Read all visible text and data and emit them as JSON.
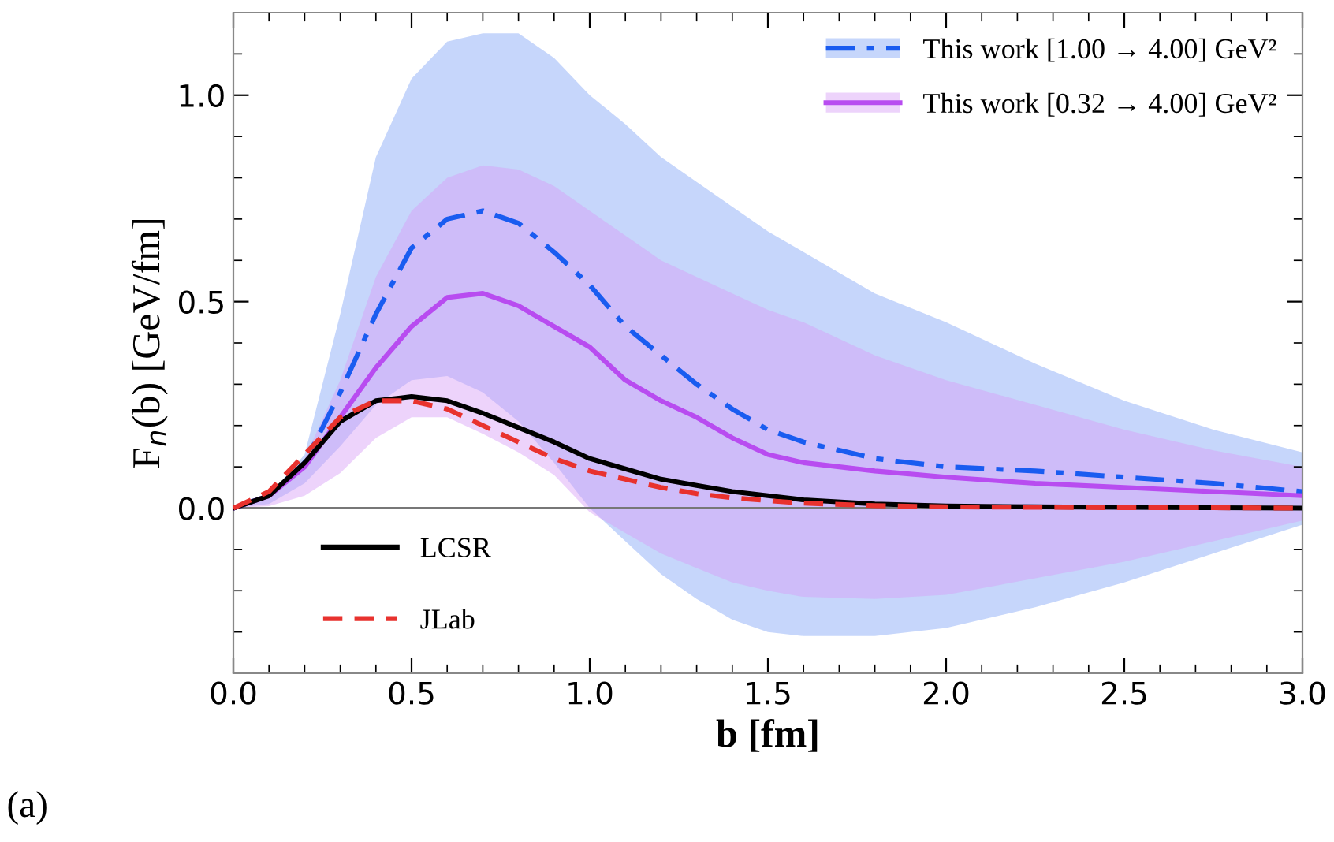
{
  "chart_data": {
    "type": "line",
    "xlabel": "b [fm]",
    "ylabel": "F$_{n}$(b) [GeV/fm]",
    "x": [
      0,
      0.1,
      0.2,
      0.3,
      0.4,
      0.5,
      0.6,
      0.7,
      0.8,
      0.9,
      1.0,
      1.1,
      1.2,
      1.3,
      1.4,
      1.5,
      1.6,
      1.8,
      2.0,
      2.25,
      2.5,
      2.75,
      3.0
    ],
    "series": [
      {
        "name": "This work [1.00 → 4.00] GeV²",
        "color": "#1a5cf0",
        "line_style": "dashdot",
        "values": [
          0,
          0.03,
          0.11,
          0.28,
          0.47,
          0.63,
          0.7,
          0.72,
          0.69,
          0.62,
          0.54,
          0.44,
          0.37,
          0.3,
          0.24,
          0.19,
          0.16,
          0.12,
          0.1,
          0.09,
          0.075,
          0.06,
          0.04
        ],
        "upper": [
          0,
          0.03,
          0.13,
          0.47,
          0.85,
          1.04,
          1.13,
          1.15,
          1.15,
          1.09,
          1.0,
          0.93,
          0.85,
          0.79,
          0.73,
          0.67,
          0.62,
          0.52,
          0.45,
          0.35,
          0.26,
          0.19,
          0.135
        ],
        "lower": [
          0,
          0.01,
          0.06,
          0.15,
          0.25,
          0.31,
          0.32,
          0.28,
          0.21,
          0.11,
          0.0,
          -0.08,
          -0.16,
          -0.22,
          -0.27,
          -0.3,
          -0.31,
          -0.31,
          -0.29,
          -0.24,
          -0.18,
          -0.11,
          -0.04
        ]
      },
      {
        "name": "This work [0.32 → 4.00] GeV²",
        "color": "#b84cf0",
        "line_style": "solid",
        "values": [
          0,
          0.03,
          0.1,
          0.22,
          0.34,
          0.44,
          0.51,
          0.52,
          0.49,
          0.44,
          0.39,
          0.31,
          0.26,
          0.22,
          0.17,
          0.13,
          0.11,
          0.09,
          0.075,
          0.06,
          0.05,
          0.04,
          0.03
        ],
        "upper": [
          0,
          0.03,
          0.12,
          0.31,
          0.56,
          0.72,
          0.8,
          0.83,
          0.82,
          0.78,
          0.72,
          0.66,
          0.6,
          0.56,
          0.52,
          0.48,
          0.45,
          0.37,
          0.31,
          0.25,
          0.19,
          0.14,
          0.1
        ],
        "lower": [
          0,
          0.005,
          0.03,
          0.085,
          0.17,
          0.22,
          0.22,
          0.18,
          0.135,
          0.08,
          -0.01,
          -0.06,
          -0.11,
          -0.145,
          -0.18,
          -0.2,
          -0.215,
          -0.22,
          -0.21,
          -0.17,
          -0.13,
          -0.08,
          -0.03
        ]
      },
      {
        "name": "LCSR",
        "color": "#000000",
        "line_style": "solid",
        "values": [
          0,
          0.03,
          0.11,
          0.21,
          0.26,
          0.27,
          0.26,
          0.23,
          0.195,
          0.16,
          0.12,
          0.095,
          0.07,
          0.055,
          0.04,
          0.03,
          0.02,
          0.01,
          0.005,
          0.003,
          0.002,
          0.001,
          0
        ]
      },
      {
        "name": "JLab",
        "color": "#e8322e",
        "line_style": "dashed",
        "values": [
          0,
          0.04,
          0.13,
          0.22,
          0.26,
          0.26,
          0.24,
          0.2,
          0.16,
          0.12,
          0.09,
          0.07,
          0.05,
          0.035,
          0.025,
          0.018,
          0.012,
          0.006,
          0.003,
          0.002,
          0.001,
          0.001,
          0
        ]
      }
    ],
    "xlim": [
      0,
      3.0
    ],
    "ylim": [
      -0.4,
      1.2
    ],
    "xticks": [
      {
        "value": 0,
        "label": "0.0"
      },
      0.5,
      {
        "value": 1,
        "label": "1.0"
      },
      1.5,
      {
        "value": 2,
        "label": "2.0"
      },
      2.5,
      {
        "value": 3,
        "label": "3.0"
      }
    ],
    "yticks": [
      {
        "value": 0,
        "label": "0.0"
      },
      0.5,
      {
        "value": 1,
        "label": "1.0"
      }
    ],
    "ref_lines": [
      {
        "axis": "y",
        "value": 0,
        "color": "#777777"
      }
    ],
    "annotations": [
      "(a)"
    ],
    "grid": false,
    "legend": "top right"
  }
}
